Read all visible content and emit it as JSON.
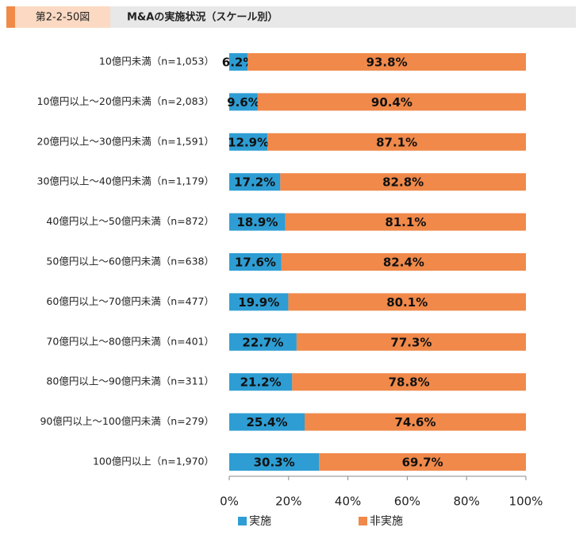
{
  "chart_data": {
    "type": "stacked-bar-horizontal",
    "figure_label": "第2-2-50図",
    "title": "M&Aの実施状況（スケール別）",
    "categories": [
      "10億円未満（n=1,053）",
      "10億円以上～20億円未満（n=2,083）",
      "20億円以上～30億円未満（n=1,591）",
      "30億円以上～40億円未満（n=1,179）",
      "40億円以上～50億円未満（n=872）",
      "50億円以上～60億円未満（n=638）",
      "60億円以上～70億円未満（n=477）",
      "70億円以上～80億円未満（n=401）",
      "80億円以上～90億円未満（n=311）",
      "90億円以上～100億円未満（n=279）",
      "100億円以上（n=1,970）"
    ],
    "series": [
      {
        "name": "実施",
        "color": "#2e9dd3",
        "values": [
          6.2,
          9.6,
          12.9,
          17.2,
          18.9,
          17.6,
          19.9,
          22.7,
          21.2,
          25.4,
          30.3
        ],
        "value_labels": [
          "6.2%",
          "9.6%",
          "12.9%",
          "17.2%",
          "18.9%",
          "17.6%",
          "19.9%",
          "22.7%",
          "21.2%",
          "25.4%",
          "30.3%"
        ]
      },
      {
        "name": "非実施",
        "color": "#f0894a",
        "values": [
          93.8,
          90.4,
          87.1,
          82.8,
          81.1,
          82.4,
          80.1,
          77.3,
          78.8,
          74.6,
          69.7
        ],
        "value_labels": [
          "93.8%",
          "90.4%",
          "87.1%",
          "82.8%",
          "81.1%",
          "82.4%",
          "80.1%",
          "77.3%",
          "78.8%",
          "74.6%",
          "69.7%"
        ]
      }
    ],
    "xlim": [
      0,
      100
    ],
    "xticks": [
      {
        "value": 0,
        "label": "0%"
      },
      {
        "value": 20,
        "label": "20%"
      },
      {
        "value": 40,
        "label": "40%"
      },
      {
        "value": 60,
        "label": "60%"
      },
      {
        "value": 80,
        "label": "80%"
      },
      {
        "value": 100,
        "label": "100%"
      }
    ]
  }
}
